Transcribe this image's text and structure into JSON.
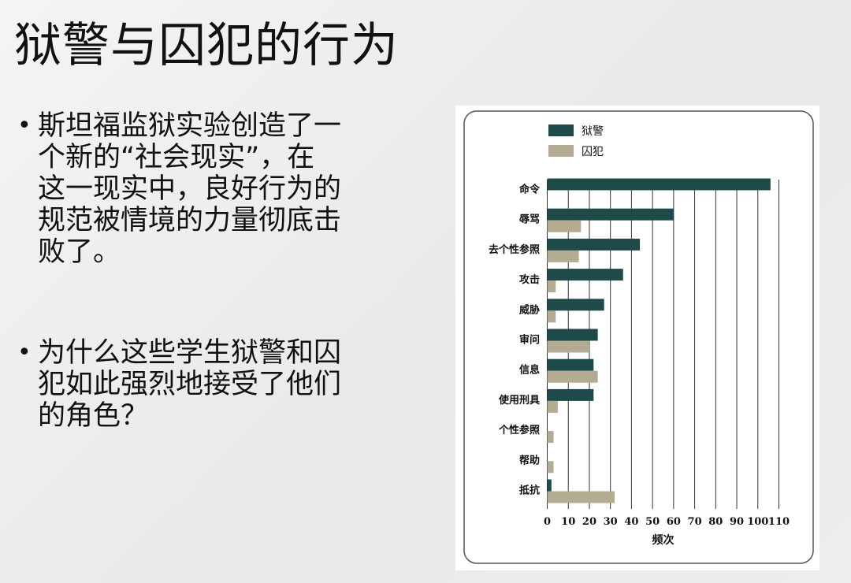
{
  "slide": {
    "title": "狱警与囚犯的行为",
    "bullets": [
      [
        "斯坦福监狱实验创造了一",
        "个新的“社会现实”，在",
        "这一现实中，良好行为的",
        "规范被情境的力量彻底击",
        "败了。"
      ],
      [
        "为什么这些学生狱警和囚",
        "犯如此强烈地接受了他们",
        "的角色？"
      ]
    ]
  },
  "chart_data": {
    "type": "bar",
    "orientation": "horizontal",
    "categories": [
      "命令",
      "辱骂",
      "去个性参照",
      "攻击",
      "威胁",
      "审问",
      "信息",
      "使用刑具",
      "个性参照",
      "帮助",
      "抵抗"
    ],
    "series": [
      {
        "name": "狱警",
        "color": "#1e4a4a",
        "values": [
          106,
          60,
          44,
          36,
          27,
          24,
          22,
          22,
          0,
          0,
          2
        ]
      },
      {
        "name": "囚犯",
        "color": "#b3ab92",
        "values": [
          0,
          16,
          15,
          4,
          4,
          20,
          24,
          5,
          3,
          3,
          32
        ]
      }
    ],
    "xlabel": "频次",
    "xlim": [
      0,
      110
    ],
    "xticks": [
      0,
      10,
      20,
      30,
      40,
      50,
      60,
      70,
      80,
      90,
      100,
      110
    ],
    "grid": "vertical",
    "legend": "top-left"
  }
}
